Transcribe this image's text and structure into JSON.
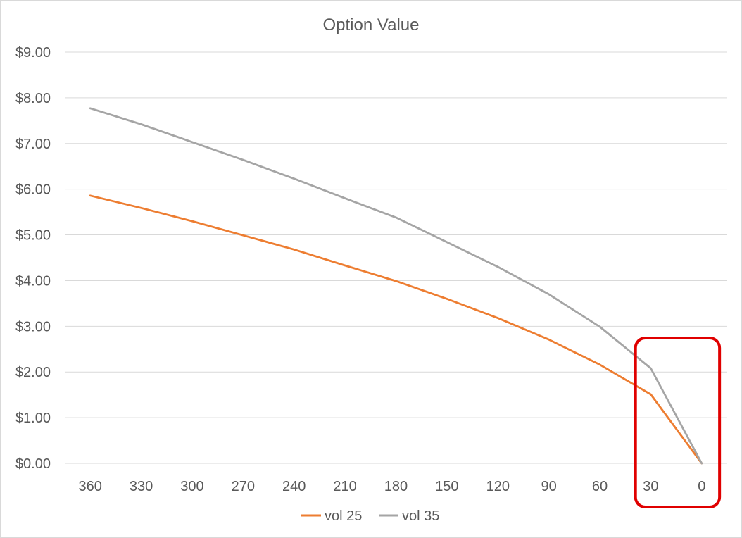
{
  "chart_data": {
    "type": "line",
    "title": "Option Value",
    "xlabel": "",
    "ylabel": "",
    "categories": [
      "360",
      "330",
      "300",
      "270",
      "240",
      "210",
      "180",
      "150",
      "120",
      "90",
      "60",
      "30",
      "0"
    ],
    "ylim": [
      0,
      9
    ],
    "yticks": [
      0,
      1,
      2,
      3,
      4,
      5,
      6,
      7,
      8,
      9
    ],
    "ytick_labels": [
      "$0.00",
      "$1.00",
      "$2.00",
      "$3.00",
      "$4.00",
      "$5.00",
      "$6.00",
      "$7.00",
      "$8.00",
      "$9.00"
    ],
    "grid": true,
    "legend_position": "bottom",
    "series": [
      {
        "name": "vol 25",
        "color": "#ed7d31",
        "values": [
          5.86,
          5.59,
          5.3,
          4.99,
          4.68,
          4.33,
          3.99,
          3.6,
          3.18,
          2.71,
          2.16,
          1.51,
          0.0
        ]
      },
      {
        "name": "vol 35",
        "color": "#a5a5a5",
        "values": [
          7.77,
          7.42,
          7.03,
          6.64,
          6.23,
          5.8,
          5.38,
          4.84,
          4.3,
          3.7,
          2.99,
          2.08,
          0.0
        ]
      }
    ],
    "annotations": [
      {
        "type": "highlight-box",
        "color": "#e00000",
        "from_category": "30",
        "to_category": "0"
      }
    ]
  }
}
